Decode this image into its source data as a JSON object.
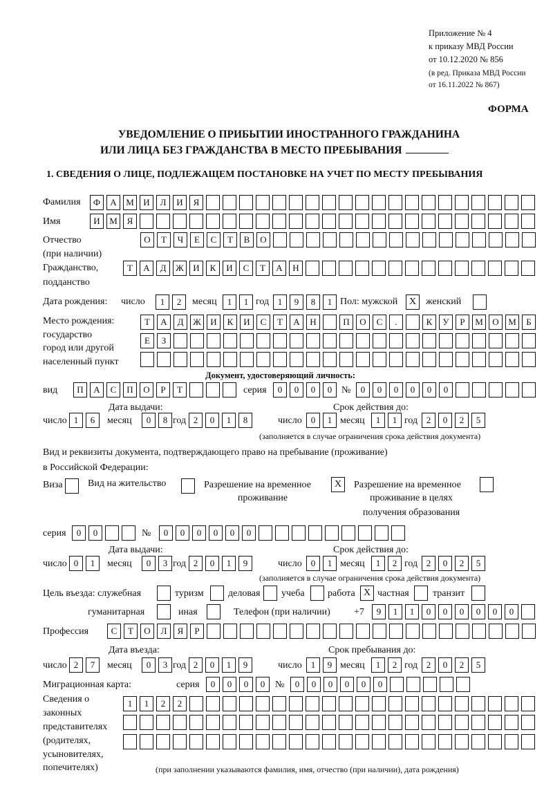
{
  "header": {
    "line1": "Приложение № 4",
    "line2": "к приказу МВД России",
    "line3": "от 10.12.2020 № 856",
    "line4": "(в ред. Приказа МВД России",
    "line5": "от 16.11.2022 № 867)",
    "forma": "ФОРМА"
  },
  "title": {
    "line1": "УВЕДОМЛЕНИЕ О ПРИБЫТИИ ИНОСТРАННОГО ГРАЖДАНИНА",
    "line2": "ИЛИ ЛИЦА БЕЗ ГРАЖДАНСТВА В МЕСТО ПРЕБЫВАНИЯ"
  },
  "section1": {
    "heading": "1. СВЕДЕНИЯ О ЛИЦЕ, ПОДЛЕЖАЩЕМ ПОСТАНОВКЕ НА УЧЕТ ПО МЕСТУ ПРЕБЫВАНИЯ",
    "surname": {
      "label": "Фамилия",
      "value": "ФАМИЛИЯ"
    },
    "name": {
      "label": "Имя",
      "value": "ИМЯ"
    },
    "patronymic": {
      "label": "Отчество",
      "label2": "(при наличии)",
      "value": "ОТЧЕСТВО"
    },
    "citizenship": {
      "label": "Гражданство,",
      "label2": "подданство",
      "value": "ТАДЖИКИСТАН"
    },
    "birth_date": {
      "label": "Дата рождения:",
      "day_label": "число",
      "day": "12",
      "month_label": "месяц",
      "month": "11",
      "year_label": "год",
      "year": "1981"
    },
    "sex": {
      "label": "Пол: мужской",
      "male": "X",
      "female_label": "женский",
      "female": ""
    },
    "birth_place": {
      "label1": "Место рождения:",
      "label2": "государство",
      "label3": "город или другой",
      "label4": "населенный пункт",
      "row1": "ТАДЖИКИСТАН ПОС. КУРМОМБ",
      "row2": "ЕЗ",
      "row3": ""
    },
    "id_doc": {
      "heading": "Документ, удостоверяющий личность:",
      "kind_label": "вид",
      "kind": "ПАСПОРТ",
      "series_label": "серия",
      "series": "0000",
      "number_label": "№",
      "number": "000000",
      "issue_label": "Дата выдачи:",
      "valid_label": "Срок действия до:",
      "day_label": "число",
      "month_label": "месяц",
      "year_label": "год",
      "issue_day": "16",
      "issue_month": "08",
      "issue_year": "2018",
      "valid_day": "01",
      "valid_month": "11",
      "valid_year": "2025",
      "note": "(заполняется в случае ограничения срока действия документа)"
    },
    "stay_doc": {
      "heading1": "Вид и реквизиты документа, подтверждающего право на пребывание (проживание)",
      "heading2": "в Российской Федерации:",
      "visa_label": "Виза",
      "visa": "",
      "residence_label": "Вид на жительство",
      "residence": "",
      "trp_label1": "Разрешение на временное",
      "trp_label2": "проживание",
      "trp": "X",
      "trp_edu_label1": "Разрешение на временное",
      "trp_edu_label2": "проживание в целях",
      "trp_edu_label3": "получения образования",
      "trp_edu": "",
      "series_label": "серия",
      "series": "00",
      "number_label": "№",
      "number": "000000",
      "issue_label": "Дата выдачи:",
      "valid_label": "Срок действия до:",
      "day_label": "число",
      "month_label": "месяц",
      "year_label": "год",
      "issue_day": "01",
      "issue_month": "03",
      "issue_year": "2019",
      "valid_day": "01",
      "valid_month": "12",
      "valid_year": "2025",
      "note": "(заполняется в случае ограничения срока действия документа)"
    },
    "purpose": {
      "label": "Цель въезда: служебная",
      "official": "",
      "tourism_label": "туризм",
      "tourism": "",
      "business_label": "деловая",
      "business": "",
      "study_label": "учеба",
      "study": "",
      "work_label": "работа",
      "work": "X",
      "private_label": "частная",
      "private": "",
      "transit_label": "транзит",
      "transit": "",
      "humanitarian_label": "гуманитарная",
      "humanitarian": "",
      "other_label": "иная",
      "other": ""
    },
    "phone": {
      "label": "Телефон (при наличии)",
      "prefix": "+7",
      "value": "911000000"
    },
    "profession": {
      "label": "Профессия",
      "value": "СТОЛЯР"
    },
    "entry": {
      "entry_label": "Дата въезда:",
      "stay_label": "Срок пребывания до:",
      "day_label": "число",
      "month_label": "месяц",
      "year_label": "год",
      "entry_day": "27",
      "entry_month": "03",
      "entry_year": "2019",
      "stay_day": "19",
      "stay_month": "12",
      "stay_year": "2025"
    },
    "migration_card": {
      "label": "Миграционная карта:",
      "series_label": "серия",
      "series": "0000",
      "number_label": "№",
      "number": "000000"
    },
    "representatives": {
      "label1": "Сведения о",
      "label2": "законных",
      "label3": "представителях",
      "label4": "(родителях,",
      "label5": "усыновителях,",
      "label6": "попечителях)",
      "row1": "1122",
      "row2": "",
      "row3": "",
      "note": "(при заполнении указываются фамилия, имя, отчество (при наличии), дата рождения)"
    }
  }
}
